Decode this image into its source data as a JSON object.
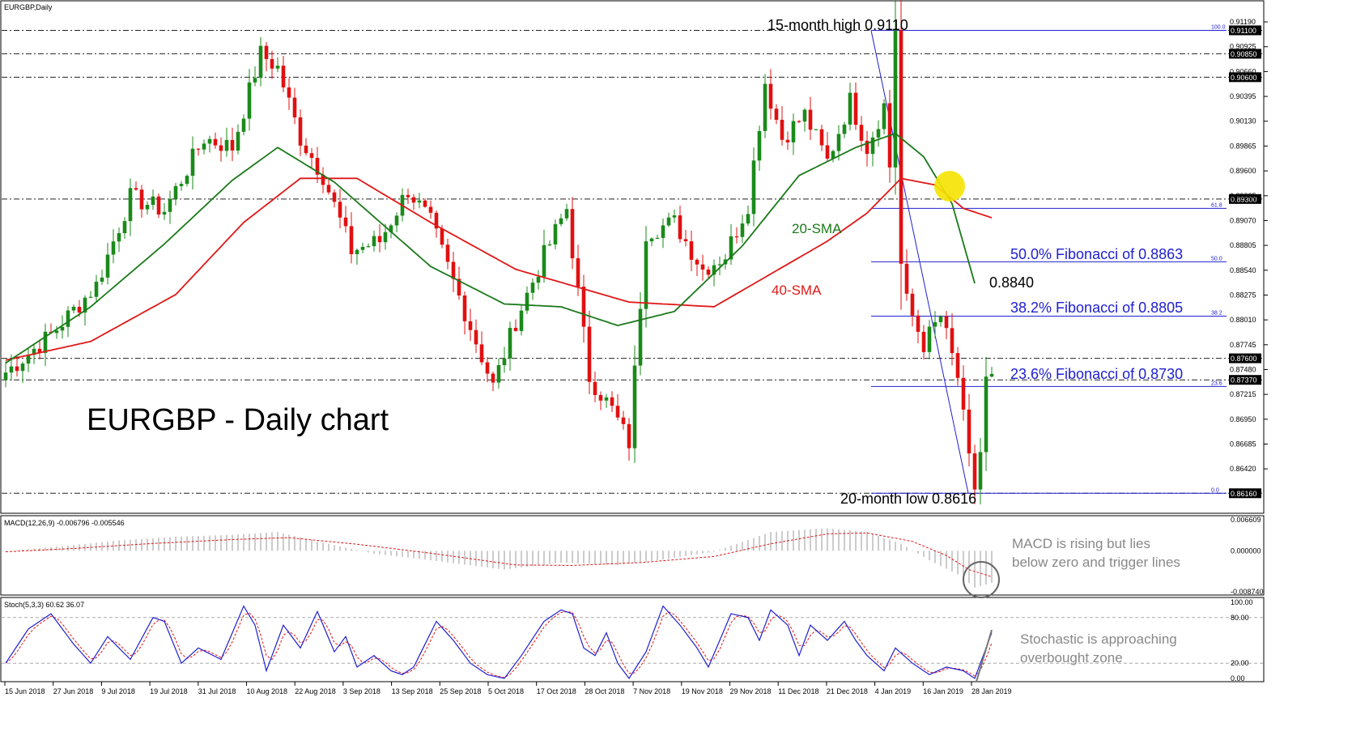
{
  "window_title": "EURGBP,Daily",
  "chart_title": "EURGBP - Daily chart",
  "colors": {
    "bull": "#1a8a1a",
    "bear": "#e01010",
    "sma20": "#1a7a1a",
    "sma40": "#e01818",
    "fib": "#2020d0",
    "annotation": "#888888",
    "highlight": "#f5e300"
  },
  "chart_data": [
    {
      "type": "candlestick",
      "title": "EURGBP - Daily chart",
      "ylim": [
        0.8605,
        0.9132
      ],
      "y_ticks": [
        "0.91190",
        "0.90925",
        "0.90660",
        "0.90395",
        "0.90130",
        "0.89865",
        "0.89600",
        "0.89335",
        "0.89070",
        "0.88805",
        "0.88540",
        "0.88275",
        "0.88010",
        "0.87745",
        "0.87480",
        "0.87215",
        "0.86950",
        "0.86685",
        "0.86420"
      ],
      "x_ticks": [
        "15 Jun 2018",
        "27 Jun 2018",
        "9 Jul 2018",
        "19 Jul 2018",
        "31 Jul 2018",
        "10 Aug 2018",
        "22 Aug 2018",
        "3 Sep 2018",
        "13 Sep 2018",
        "25 Sep 2018",
        "5 Oct 2018",
        "17 Oct 2018",
        "28 Oct 2018",
        "7 Nov 2018",
        "19 Nov 2018",
        "29 Nov 2018",
        "11 Dec 2018",
        "21 Dec 2018",
        "4 Jan 2019",
        "16 Jan 2019",
        "28 Jan 2019"
      ],
      "close_anchors": [
        [
          0,
          0.8745
        ],
        [
          8,
          0.8785
        ],
        [
          16,
          0.8838
        ],
        [
          22,
          0.8932
        ],
        [
          28,
          0.8918
        ],
        [
          35,
          0.8995
        ],
        [
          40,
          0.8985
        ],
        [
          45,
          0.9085
        ],
        [
          48,
          0.907
        ],
        [
          52,
          0.8995
        ],
        [
          56,
          0.8955
        ],
        [
          61,
          0.8875
        ],
        [
          66,
          0.8885
        ],
        [
          71,
          0.894
        ],
        [
          75,
          0.8905
        ],
        [
          81,
          0.881
        ],
        [
          86,
          0.873
        ],
        [
          90,
          0.88
        ],
        [
          95,
          0.887
        ],
        [
          99,
          0.892
        ],
        [
          103,
          0.874
        ],
        [
          107,
          0.8705
        ],
        [
          110,
          0.867
        ],
        [
          113,
          0.8895
        ],
        [
          118,
          0.8905
        ],
        [
          123,
          0.8855
        ],
        [
          127,
          0.887
        ],
        [
          131,
          0.8925
        ],
        [
          134,
          0.9055
        ],
        [
          137,
          0.8995
        ],
        [
          141,
          0.902
        ],
        [
          145,
          0.897
        ],
        [
          149,
          0.9035
        ],
        [
          152,
          0.8985
        ],
        [
          155,
          0.903
        ],
        [
          157,
          0.89
        ],
        [
          159,
          0.882
        ],
        [
          162,
          0.8775
        ],
        [
          165,
          0.8805
        ],
        [
          168,
          0.874
        ],
        [
          170,
          0.865
        ],
        [
          172,
          0.866
        ],
        [
          173,
          0.8736
        ],
        [
          174,
          0.8737
        ]
      ],
      "sma20": [
        [
          0,
          0.8755
        ],
        [
          15,
          0.8815
        ],
        [
          28,
          0.8882
        ],
        [
          40,
          0.895
        ],
        [
          48,
          0.8985
        ],
        [
          58,
          0.8948
        ],
        [
          75,
          0.8858
        ],
        [
          88,
          0.8818
        ],
        [
          98,
          0.8815
        ],
        [
          108,
          0.8795
        ],
        [
          118,
          0.881
        ],
        [
          130,
          0.888
        ],
        [
          140,
          0.8955
        ],
        [
          150,
          0.8985
        ],
        [
          157,
          0.9
        ],
        [
          162,
          0.8975
        ],
        [
          167,
          0.8925
        ],
        [
          171,
          0.884
        ]
      ],
      "sma40": [
        [
          0,
          0.8758
        ],
        [
          15,
          0.8778
        ],
        [
          30,
          0.8828
        ],
        [
          42,
          0.8905
        ],
        [
          52,
          0.8952
        ],
        [
          62,
          0.8952
        ],
        [
          75,
          0.8905
        ],
        [
          90,
          0.8855
        ],
        [
          110,
          0.882
        ],
        [
          125,
          0.8815
        ],
        [
          135,
          0.885
        ],
        [
          145,
          0.8885
        ],
        [
          152,
          0.8915
        ],
        [
          158,
          0.8952
        ],
        [
          164,
          0.8945
        ],
        [
          169,
          0.892
        ],
        [
          174,
          0.891
        ]
      ],
      "horizontal_levels": [
        "0.91100",
        "0.90850",
        "0.90600",
        "0.89300",
        "0.87600",
        "0.87370",
        "0.86160"
      ],
      "fibonacci": [
        {
          "level": "100.0",
          "price": 0.911
        },
        {
          "level": "61.8",
          "price": 0.892
        },
        {
          "level": "50.0",
          "price": 0.8863
        },
        {
          "level": "38.2",
          "price": 0.8805
        },
        {
          "level": "23.6",
          "price": 0.873
        },
        {
          "level": "0.0",
          "price": 0.8616
        }
      ],
      "annotations": {
        "high": "15-month high 0.9110",
        "low": "20-month low 0.8616",
        "fib50": "50.0% Fibonacci of 0.8863",
        "fib382": "38.2% Fibonacci of 0.8805",
        "fib236": "23.6% Fibonacci of 0.8730",
        "sma20_label": "20-SMA",
        "sma40_label": "40-SMA",
        "sma20_value": "0.8840"
      }
    },
    {
      "type": "histogram",
      "title": "MACD(12,26,9) -0.006796 -0.005546",
      "ylim": [
        -0.0087,
        0.0066
      ],
      "y_ticks": [
        "0.006609",
        "0.000000",
        "-0.008740"
      ],
      "macd_anchors": [
        [
          0,
          -0.0001
        ],
        [
          10,
          0.001
        ],
        [
          20,
          0.0022
        ],
        [
          30,
          0.003
        ],
        [
          40,
          0.0034
        ],
        [
          48,
          0.004
        ],
        [
          55,
          0.002
        ],
        [
          65,
          -0.0006
        ],
        [
          75,
          -0.002
        ],
        [
          88,
          -0.004
        ],
        [
          98,
          -0.0025
        ],
        [
          108,
          -0.003
        ],
        [
          115,
          -0.002
        ],
        [
          125,
          -0.0002
        ],
        [
          135,
          0.004
        ],
        [
          145,
          0.0048
        ],
        [
          152,
          0.004
        ],
        [
          158,
          0.0015
        ],
        [
          163,
          -0.002
        ],
        [
          168,
          -0.005
        ],
        [
          171,
          -0.0078
        ],
        [
          174,
          -0.0068
        ]
      ],
      "signal_anchors": [
        [
          0,
          -0.0002
        ],
        [
          12,
          0.0005
        ],
        [
          25,
          0.0015
        ],
        [
          40,
          0.0024
        ],
        [
          50,
          0.0028
        ],
        [
          62,
          0.0014
        ],
        [
          75,
          -0.0005
        ],
        [
          90,
          -0.003
        ],
        [
          100,
          -0.0031
        ],
        [
          112,
          -0.0025
        ],
        [
          125,
          -0.0012
        ],
        [
          135,
          0.0015
        ],
        [
          145,
          0.0036
        ],
        [
          152,
          0.0038
        ],
        [
          160,
          0.002
        ],
        [
          166,
          -0.001
        ],
        [
          170,
          -0.004
        ],
        [
          174,
          -0.0055
        ]
      ],
      "annotation": "MACD is rising but lies below zero and trigger lines"
    },
    {
      "type": "line",
      "title": "Stoch(5,3,3) 60.62 36.07",
      "ylim": [
        0,
        100
      ],
      "y_ticks": [
        "100.00",
        "80.00",
        "20.00",
        "0.00"
      ],
      "k_anchors": [
        [
          0,
          20
        ],
        [
          4,
          65
        ],
        [
          8,
          85
        ],
        [
          12,
          45
        ],
        [
          15,
          20
        ],
        [
          18,
          55
        ],
        [
          22,
          25
        ],
        [
          26,
          80
        ],
        [
          28,
          75
        ],
        [
          31,
          20
        ],
        [
          34,
          40
        ],
        [
          38,
          25
        ],
        [
          42,
          95
        ],
        [
          44,
          70
        ],
        [
          46,
          10
        ],
        [
          49,
          70
        ],
        [
          52,
          40
        ],
        [
          55,
          88
        ],
        [
          58,
          35
        ],
        [
          60,
          55
        ],
        [
          62,
          15
        ],
        [
          65,
          30
        ],
        [
          68,
          10
        ],
        [
          70,
          5
        ],
        [
          72,
          15
        ],
        [
          76,
          75
        ],
        [
          79,
          50
        ],
        [
          82,
          20
        ],
        [
          85,
          5
        ],
        [
          88,
          0
        ],
        [
          91,
          30
        ],
        [
          95,
          75
        ],
        [
          98,
          90
        ],
        [
          100,
          85
        ],
        [
          102,
          40
        ],
        [
          104,
          30
        ],
        [
          106,
          60
        ],
        [
          108,
          20
        ],
        [
          110,
          0
        ],
        [
          113,
          35
        ],
        [
          116,
          95
        ],
        [
          119,
          70
        ],
        [
          122,
          40
        ],
        [
          124,
          15
        ],
        [
          128,
          85
        ],
        [
          131,
          80
        ],
        [
          133,
          50
        ],
        [
          135,
          90
        ],
        [
          138,
          70
        ],
        [
          140,
          30
        ],
        [
          142,
          70
        ],
        [
          145,
          50
        ],
        [
          148,
          75
        ],
        [
          150,
          50
        ],
        [
          152,
          30
        ],
        [
          155,
          10
        ],
        [
          157,
          40
        ],
        [
          160,
          20
        ],
        [
          163,
          5
        ],
        [
          166,
          15
        ],
        [
          169,
          10
        ],
        [
          171,
          0
        ],
        [
          174,
          60
        ]
      ],
      "annotation": "Stochastic is approaching overbought zone"
    }
  ]
}
